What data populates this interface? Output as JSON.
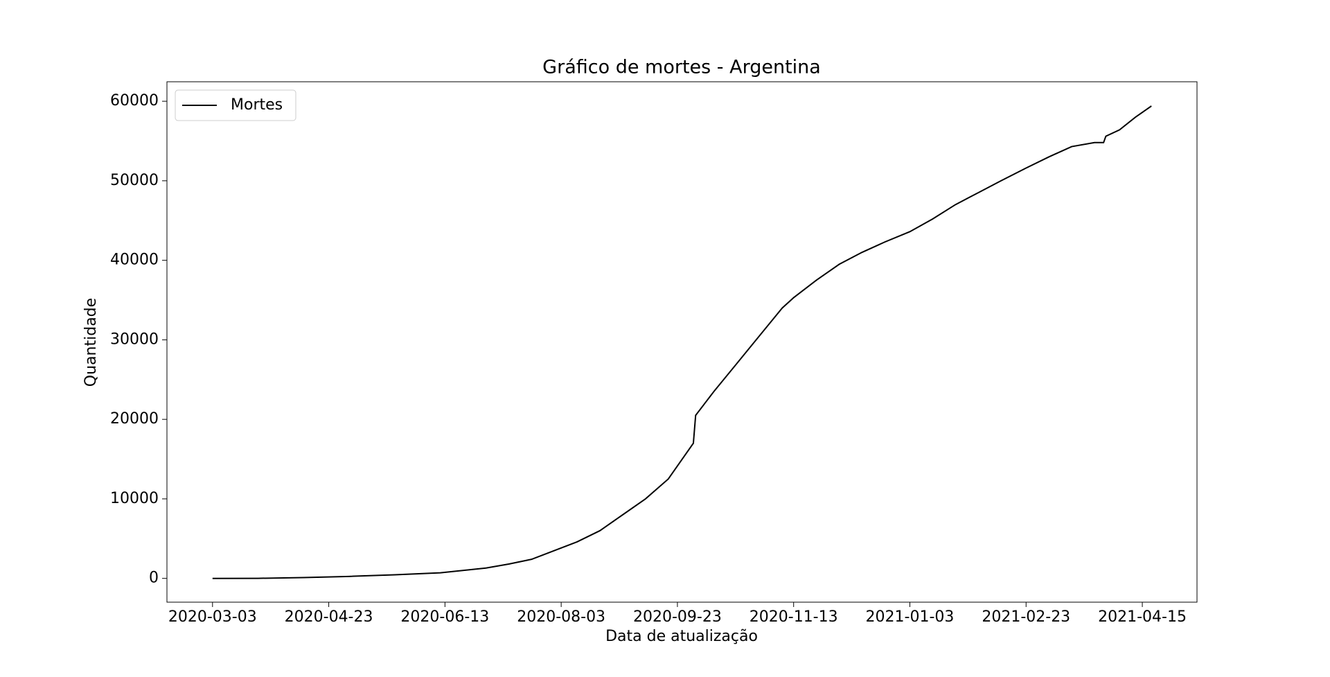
{
  "chart_data": {
    "type": "line",
    "title": "Gráfico de mortes - Argentina",
    "x_label": "Data de atualização",
    "y_label": "Quantidade",
    "x": [
      "2020-03-03",
      "2020-03-23",
      "2020-04-12",
      "2020-05-02",
      "2020-05-22",
      "2020-06-11",
      "2020-07-01",
      "2020-07-11",
      "2020-07-21",
      "2020-07-31",
      "2020-08-10",
      "2020-08-20",
      "2020-08-30",
      "2020-09-09",
      "2020-09-19",
      "2020-09-30",
      "2020-10-01",
      "2020-10-09",
      "2020-10-19",
      "2020-10-29",
      "2020-11-08",
      "2020-11-13",
      "2020-11-23",
      "2020-12-03",
      "2020-12-13",
      "2020-12-23",
      "2021-01-03",
      "2021-01-13",
      "2021-01-23",
      "2021-02-02",
      "2021-02-12",
      "2021-02-23",
      "2021-03-05",
      "2021-03-15",
      "2021-03-25",
      "2021-03-29",
      "2021-03-30",
      "2021-04-05",
      "2021-04-12",
      "2021-04-19"
    ],
    "series": [
      {
        "name": "Mortes",
        "color": "#000000",
        "values": [
          0,
          10,
          100,
          250,
          450,
          700,
          1300,
          1800,
          2400,
          3500,
          4600,
          6000,
          8000,
          10000,
          12500,
          17000,
          20500,
          23500,
          27000,
          30500,
          34000,
          35300,
          37500,
          39500,
          41000,
          42300,
          43600,
          45200,
          47000,
          48500,
          50000,
          51600,
          53000,
          54300,
          54800,
          54800,
          55600,
          56400,
          58000,
          59400
        ]
      }
    ],
    "xlim": [
      "2020-02-12",
      "2021-05-09"
    ],
    "xticks": [
      "2020-03-03",
      "2020-04-23",
      "2020-06-13",
      "2020-08-03",
      "2020-09-23",
      "2020-11-13",
      "2021-01-03",
      "2021-02-23",
      "2021-04-15"
    ],
    "ylim": [
      -2990,
      62450
    ],
    "yticks": [
      0,
      10000,
      20000,
      30000,
      40000,
      50000,
      60000
    ],
    "grid": false,
    "legend": "upper left"
  }
}
